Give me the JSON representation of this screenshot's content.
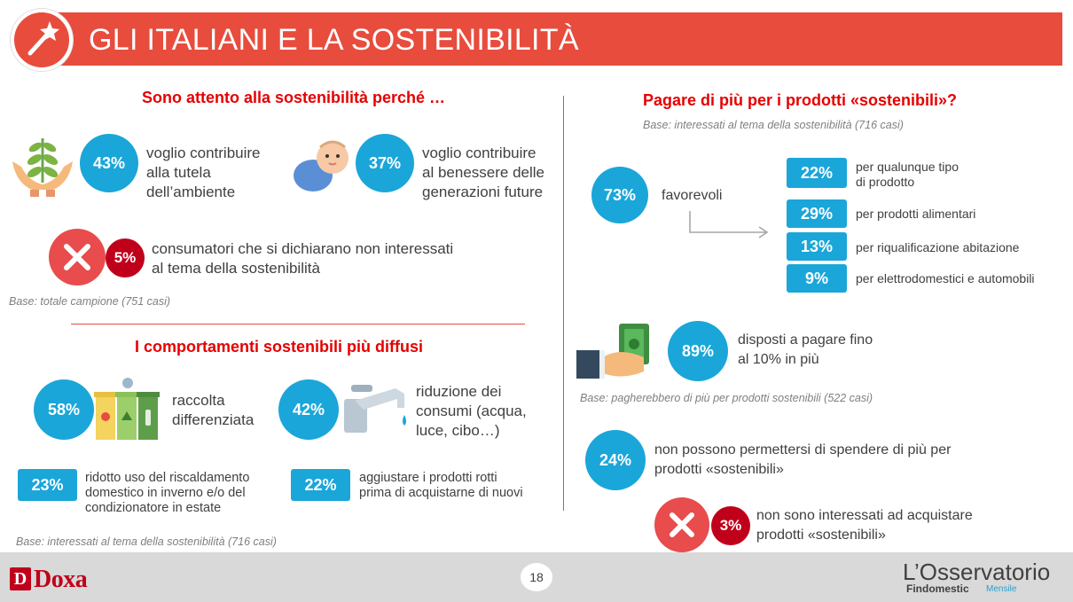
{
  "header": {
    "title": "GLI ITALIANI E LA SOSTENIBILITÀ"
  },
  "left_top": {
    "title": "Sono attento alla sostenibilità perché …",
    "items": [
      {
        "pct": "43%",
        "line1": "voglio contribuire",
        "line2": "alla tutela",
        "line3": "dell’ambiente"
      },
      {
        "pct": "37%",
        "line1": "voglio contribuire",
        "line2": "al benessere delle",
        "line3": "generazioni future"
      }
    ],
    "not_interested": {
      "pct": "5%",
      "line1": "consumatori che si dichiarano non interessati",
      "line2": "al tema della sostenibilità"
    },
    "base": "Base: totale campione (751 casi)"
  },
  "left_bottom": {
    "title": "I comportamenti sostenibili più diffusi",
    "items": [
      {
        "pct": "58%",
        "line1": "raccolta",
        "line2": "differenziata"
      },
      {
        "pct": "42%",
        "line1": "riduzione dei",
        "line2": "consumi (acqua,",
        "line3": "luce, cibo…)"
      }
    ],
    "small_items": [
      {
        "pct": "23%",
        "line1": "ridotto uso del riscaldamento",
        "line2": "domestico in inverno e/o del",
        "line3": "condizionatore in estate"
      },
      {
        "pct": "22%",
        "line1": "aggiustare i prodotti rotti",
        "line2": "prima di acquistarne di nuovi"
      }
    ],
    "base": "Base: interessati al tema della sostenibilità (716 casi)"
  },
  "right": {
    "title": "Pagare di più per i prodotti «sostenibili»?",
    "base_top": "Base: interessati al tema della sostenibilità (716 casi)",
    "favorevoli": {
      "pct": "73%",
      "label": "favorevoli"
    },
    "breakdown": [
      {
        "pct": "22%",
        "line1": "per qualunque tipo",
        "line2": "di prodotto"
      },
      {
        "pct": "29%",
        "line1": "per prodotti alimentari"
      },
      {
        "pct": "13%",
        "line1": "per riqualificazione abitazione"
      },
      {
        "pct": "9%",
        "line1": "per elettrodomestici e automobili"
      }
    ],
    "willing": {
      "pct": "89%",
      "line1": "disposti a pagare fino",
      "line2": "al 10% in più"
    },
    "base_mid": "Base: pagherebbero di più per prodotti sostenibili (522 casi)",
    "cannot": {
      "pct": "24%",
      "line1": "non possono permettersi di spendere di più per",
      "line2": "prodotti «sostenibili»"
    },
    "not_interested": {
      "pct": "3%",
      "line1": "non sono interessati ad acquistare",
      "line2": "prodotti «sostenibili»"
    }
  },
  "footer": {
    "page": "18",
    "doxa": "Doxa",
    "doxa_mark": "D",
    "osservatorio": "L’Osservatorio",
    "findomestic": "Findomestic",
    "mensile": "Mensile"
  },
  "colors": {
    "accent_red": "#e84c3d",
    "blue": "#1aa6d9",
    "dark_red": "#c0001a"
  }
}
